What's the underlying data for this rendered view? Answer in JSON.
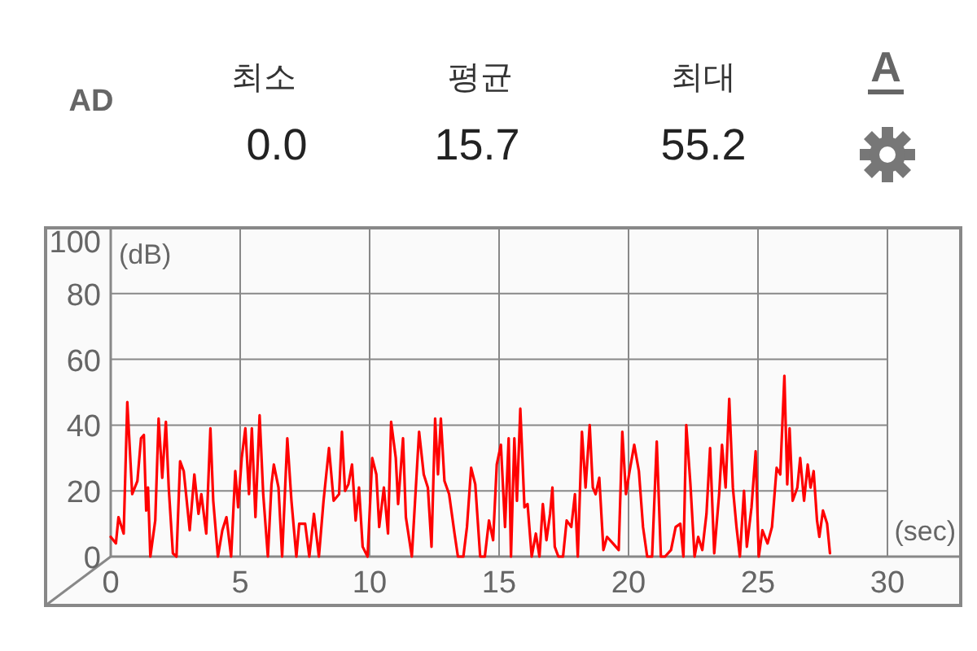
{
  "chart_data": {
    "type": "line",
    "xlabel": "(sec)",
    "ylabel": "(dB)",
    "annotations": [
      "AD",
      "최소",
      "0.0",
      "평균",
      "15.7",
      "최대",
      "55.2",
      "A"
    ],
    "xlim": [
      0,
      30
    ],
    "xticks": [
      0,
      5,
      10,
      15,
      20,
      25,
      30
    ],
    "ylim": [
      0,
      100
    ],
    "yticks": [
      0,
      20,
      40,
      60,
      80,
      100
    ],
    "grid": true,
    "marker": "none",
    "line_style": "solid",
    "series": [
      {
        "color": "#ff0000",
        "x": [
          0,
          0.2,
          0.3,
          0.5,
          0.64,
          0.83,
          1.03,
          1.17,
          1.28,
          1.37,
          1.44,
          1.53,
          1.72,
          1.85,
          1.99,
          2.13,
          2.24,
          2.4,
          2.54,
          2.68,
          2.82,
          3.05,
          3.23,
          3.39,
          3.5,
          3.69,
          3.85,
          3.96,
          4.14,
          4.31,
          4.47,
          4.65,
          4.81,
          4.92,
          5.06,
          5.2,
          5.34,
          5.45,
          5.59,
          5.75,
          5.89,
          6.07,
          6.21,
          6.3,
          6.48,
          6.62,
          6.82,
          6.98,
          7.17,
          7.28,
          7.51,
          7.67,
          7.85,
          8.04,
          8.22,
          8.43,
          8.61,
          8.82,
          8.93,
          9.05,
          9.18,
          9.32,
          9.46,
          9.59,
          9.73,
          9.92,
          10.1,
          10.26,
          10.37,
          10.55,
          10.71,
          10.83,
          11.01,
          11.1,
          11.29,
          11.4,
          11.63,
          11.91,
          12.09,
          12.25,
          12.39,
          12.53,
          12.64,
          12.75,
          12.89,
          13.07,
          13.28,
          13.41,
          13.62,
          13.76,
          13.92,
          14.08,
          14.27,
          14.45,
          14.61,
          14.77,
          14.91,
          15.07,
          15.23,
          15.37,
          15.46,
          15.59,
          15.69,
          15.82,
          15.98,
          16.1,
          16.26,
          16.42,
          16.56,
          16.69,
          16.83,
          16.97,
          17.06,
          17.15,
          17.29,
          17.47,
          17.61,
          17.79,
          17.93,
          18.04,
          18.2,
          18.34,
          18.5,
          18.62,
          18.73,
          18.87,
          19.03,
          19.17,
          19.4,
          19.62,
          19.76,
          19.9,
          20.04,
          20.22,
          20.4,
          20.56,
          20.72,
          20.91,
          21.09,
          21.25,
          21.41,
          21.64,
          21.82,
          22.0,
          22.12,
          22.23,
          22.39,
          22.55,
          22.69,
          22.85,
          23.01,
          23.15,
          23.31,
          23.5,
          23.61,
          23.75,
          23.89,
          24.03,
          24.17,
          24.3,
          24.46,
          24.57,
          24.75,
          24.91,
          25.03,
          25.17,
          25.37,
          25.54,
          25.72,
          25.86,
          26.02,
          26.13,
          26.22,
          26.34,
          26.52,
          26.63,
          26.78,
          26.92,
          27.03,
          27.15,
          27.28,
          27.37,
          27.51,
          27.67,
          27.78
        ],
        "values": [
          6,
          4,
          12,
          7,
          47,
          19,
          23,
          36,
          37,
          14,
          21,
          0,
          11,
          42,
          24,
          41,
          21,
          1,
          0,
          29,
          26,
          8,
          25,
          13,
          19,
          7,
          39,
          17,
          0,
          8,
          12,
          0,
          26,
          15,
          30,
          39,
          19,
          39,
          12,
          43,
          19,
          0,
          22,
          28,
          21,
          0,
          36,
          17,
          0,
          10,
          10,
          0,
          13,
          0,
          17,
          33,
          17,
          19,
          38,
          20,
          22,
          28,
          11,
          21,
          3,
          0,
          30,
          25,
          9,
          21,
          7,
          41,
          30,
          16,
          36,
          12,
          0,
          38,
          25,
          21,
          3,
          42,
          25,
          42,
          23,
          19,
          7,
          0,
          0,
          9,
          27,
          22,
          0,
          0,
          11,
          5,
          28,
          34,
          9,
          36,
          0,
          36,
          17,
          45,
          15,
          16,
          0,
          7,
          0,
          16,
          5,
          13,
          21,
          3,
          0,
          0,
          11,
          9,
          19,
          0,
          38,
          21,
          40,
          21,
          19,
          24,
          2,
          6,
          4,
          2,
          38,
          19,
          26,
          34,
          26,
          9,
          0,
          0,
          35,
          0,
          0,
          2,
          9,
          10,
          0,
          40,
          22,
          0,
          6,
          2,
          13,
          33,
          1,
          19,
          34,
          21,
          48,
          21,
          9,
          0,
          20,
          3,
          15,
          32,
          0,
          8,
          4,
          9,
          27,
          25,
          55,
          22,
          39,
          17,
          21,
          30,
          17,
          28,
          21,
          26,
          11,
          6,
          14,
          10,
          1
        ]
      }
    ]
  }
}
